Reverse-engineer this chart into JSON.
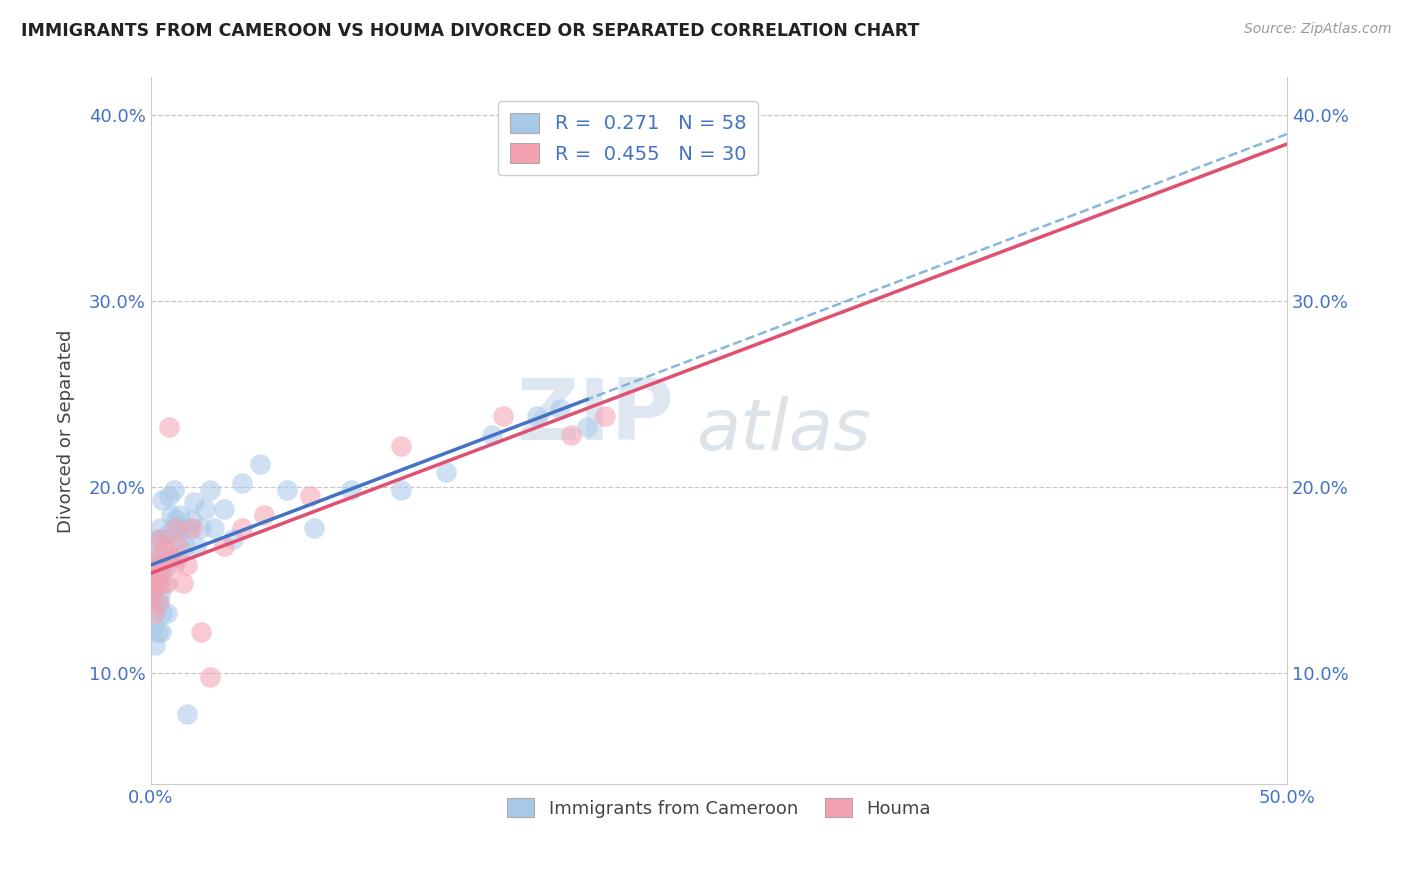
{
  "title": "IMMIGRANTS FROM CAMEROON VS HOUMA DIVORCED OR SEPARATED CORRELATION CHART",
  "source": "Source: ZipAtlas.com",
  "xlabel": "",
  "ylabel": "Divorced or Separated",
  "legend_label_1": "Immigrants from Cameroon",
  "legend_label_2": "Houma",
  "R1": 0.271,
  "N1": 58,
  "R2": 0.455,
  "N2": 30,
  "color_blue": "#a8c8e8",
  "color_pink": "#f4a0b0",
  "color_blue_line": "#4472c4",
  "color_pink_line": "#e05070",
  "color_dash": "#7ab0d8",
  "xlim": [
    0.0,
    0.5
  ],
  "ylim": [
    0.04,
    0.42
  ],
  "xticks": [
    0.0,
    0.5
  ],
  "yticks": [
    0.1,
    0.2,
    0.3,
    0.4
  ],
  "ytick_labels": [
    "10.0%",
    "20.0%",
    "30.0%",
    "40.0%"
  ],
  "xtick_labels": [
    "0.0%",
    "50.0%"
  ],
  "blue_dots": [
    [
      0.0005,
      0.155
    ],
    [
      0.001,
      0.14
    ],
    [
      0.001,
      0.17
    ],
    [
      0.0015,
      0.125
    ],
    [
      0.0015,
      0.15
    ],
    [
      0.002,
      0.16
    ],
    [
      0.002,
      0.115
    ],
    [
      0.0025,
      0.135
    ],
    [
      0.0025,
      0.148
    ],
    [
      0.003,
      0.152
    ],
    [
      0.003,
      0.122
    ],
    [
      0.003,
      0.172
    ],
    [
      0.0035,
      0.138
    ],
    [
      0.004,
      0.178
    ],
    [
      0.004,
      0.142
    ],
    [
      0.004,
      0.158
    ],
    [
      0.0045,
      0.122
    ],
    [
      0.005,
      0.162
    ],
    [
      0.005,
      0.132
    ],
    [
      0.005,
      0.193
    ],
    [
      0.006,
      0.172
    ],
    [
      0.006,
      0.148
    ],
    [
      0.007,
      0.158
    ],
    [
      0.007,
      0.132
    ],
    [
      0.008,
      0.175
    ],
    [
      0.008,
      0.195
    ],
    [
      0.009,
      0.185
    ],
    [
      0.009,
      0.162
    ],
    [
      0.01,
      0.178
    ],
    [
      0.01,
      0.198
    ],
    [
      0.011,
      0.182
    ],
    [
      0.012,
      0.162
    ],
    [
      0.012,
      0.172
    ],
    [
      0.013,
      0.185
    ],
    [
      0.014,
      0.178
    ],
    [
      0.015,
      0.168
    ],
    [
      0.016,
      0.078
    ],
    [
      0.017,
      0.178
    ],
    [
      0.018,
      0.182
    ],
    [
      0.019,
      0.192
    ],
    [
      0.02,
      0.168
    ],
    [
      0.022,
      0.178
    ],
    [
      0.024,
      0.188
    ],
    [
      0.026,
      0.198
    ],
    [
      0.028,
      0.178
    ],
    [
      0.032,
      0.188
    ],
    [
      0.036,
      0.172
    ],
    [
      0.04,
      0.202
    ],
    [
      0.048,
      0.212
    ],
    [
      0.06,
      0.198
    ],
    [
      0.072,
      0.178
    ],
    [
      0.088,
      0.198
    ],
    [
      0.11,
      0.198
    ],
    [
      0.13,
      0.208
    ],
    [
      0.15,
      0.228
    ],
    [
      0.17,
      0.238
    ],
    [
      0.18,
      0.242
    ],
    [
      0.192,
      0.232
    ]
  ],
  "pink_dots": [
    [
      0.0005,
      0.142
    ],
    [
      0.001,
      0.158
    ],
    [
      0.0015,
      0.132
    ],
    [
      0.002,
      0.148
    ],
    [
      0.0025,
      0.162
    ],
    [
      0.003,
      0.138
    ],
    [
      0.003,
      0.152
    ],
    [
      0.004,
      0.172
    ],
    [
      0.004,
      0.148
    ],
    [
      0.005,
      0.158
    ],
    [
      0.006,
      0.168
    ],
    [
      0.007,
      0.148
    ],
    [
      0.008,
      0.232
    ],
    [
      0.009,
      0.162
    ],
    [
      0.01,
      0.158
    ],
    [
      0.011,
      0.178
    ],
    [
      0.012,
      0.168
    ],
    [
      0.014,
      0.148
    ],
    [
      0.016,
      0.158
    ],
    [
      0.018,
      0.178
    ],
    [
      0.022,
      0.122
    ],
    [
      0.026,
      0.098
    ],
    [
      0.032,
      0.168
    ],
    [
      0.04,
      0.178
    ],
    [
      0.05,
      0.185
    ],
    [
      0.07,
      0.195
    ],
    [
      0.11,
      0.222
    ],
    [
      0.155,
      0.238
    ],
    [
      0.185,
      0.228
    ],
    [
      0.2,
      0.238
    ]
  ],
  "watermark_zip": "ZIP",
  "watermark_atlas": "atlas",
  "background_color": "#ffffff",
  "grid_color": "#c8c8c8"
}
